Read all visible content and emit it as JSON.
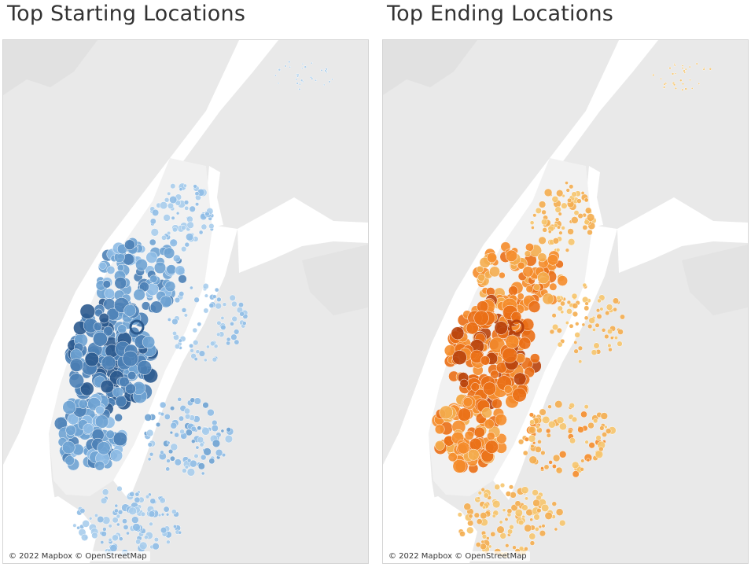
{
  "maps": [
    {
      "id": "start",
      "title": "Top Starting Locations",
      "attribution": "© 2022 Mapbox © OpenStreetMap",
      "palette": [
        "#a9cdec",
        "#8fbde6",
        "#6fa3d3",
        "#4d81b6",
        "#2c5a8e"
      ]
    },
    {
      "id": "end",
      "title": "Top Ending Locations",
      "attribution": "© 2022 Mapbox © OpenStreetMap",
      "palette": [
        "#f6c56e",
        "#f4ad4f",
        "#f58d2c",
        "#ea6f16",
        "#b8420c"
      ]
    }
  ]
}
